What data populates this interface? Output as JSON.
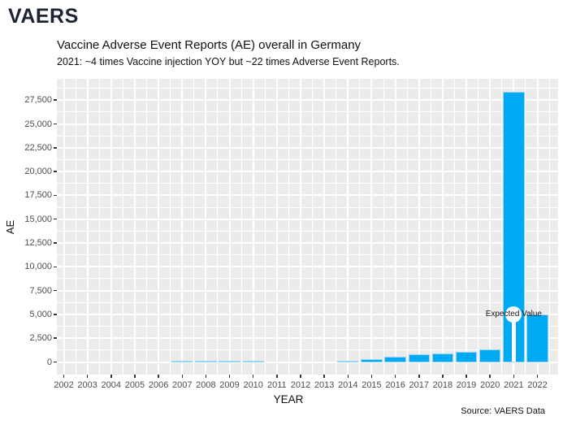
{
  "app": {
    "brand": "VAERS",
    "brand_color": "#1B2433"
  },
  "chart": {
    "title": "Vaccine Adverse Event Reports (AE) overall in Germany",
    "subtitle": "2021: ~4 times Vaccine injection YOY but ~22 times Adverse Event Reports.",
    "xlabel": "YEAR",
    "ylabel": "AE",
    "source": "Source: VAERS Data"
  },
  "chart_data": {
    "type": "bar",
    "title": "Vaccine Adverse Event Reports (AE) overall in Germany",
    "subtitle": "2021: ~4 times Vaccine injection YOY but ~22 times Adverse Event Reports.",
    "xlabel": "YEAR",
    "ylabel": "AE",
    "categories": [
      "2002",
      "2003",
      "2004",
      "2005",
      "2006",
      "2007",
      "2008",
      "2009",
      "2010",
      "2011",
      "2012",
      "2013",
      "2014",
      "2015",
      "2016",
      "2017",
      "2018",
      "2019",
      "2020",
      "2021",
      "2022"
    ],
    "values": [
      0,
      0,
      0,
      0,
      0,
      100,
      150,
      150,
      150,
      0,
      0,
      0,
      140,
      340,
      560,
      850,
      940,
      1100,
      1350,
      28400,
      5000
    ],
    "yticks": [
      0,
      2500,
      5000,
      7500,
      10000,
      12500,
      15000,
      17500,
      20000,
      22500,
      25000,
      27500
    ],
    "ylim": [
      -1400,
      29800
    ],
    "grid": "on",
    "legend": "none",
    "annotation": {
      "label": "Expected Value",
      "x": "2021",
      "y": 5000
    },
    "colors": {
      "bar_fill": "#00AAF2",
      "bar_border": "#96D5F5",
      "panel_bg": "#EBEBEB",
      "gridline": "#FFFFFF",
      "axis_text": "#4D4D4D",
      "annotation_marker": "#FFFFFF"
    }
  }
}
